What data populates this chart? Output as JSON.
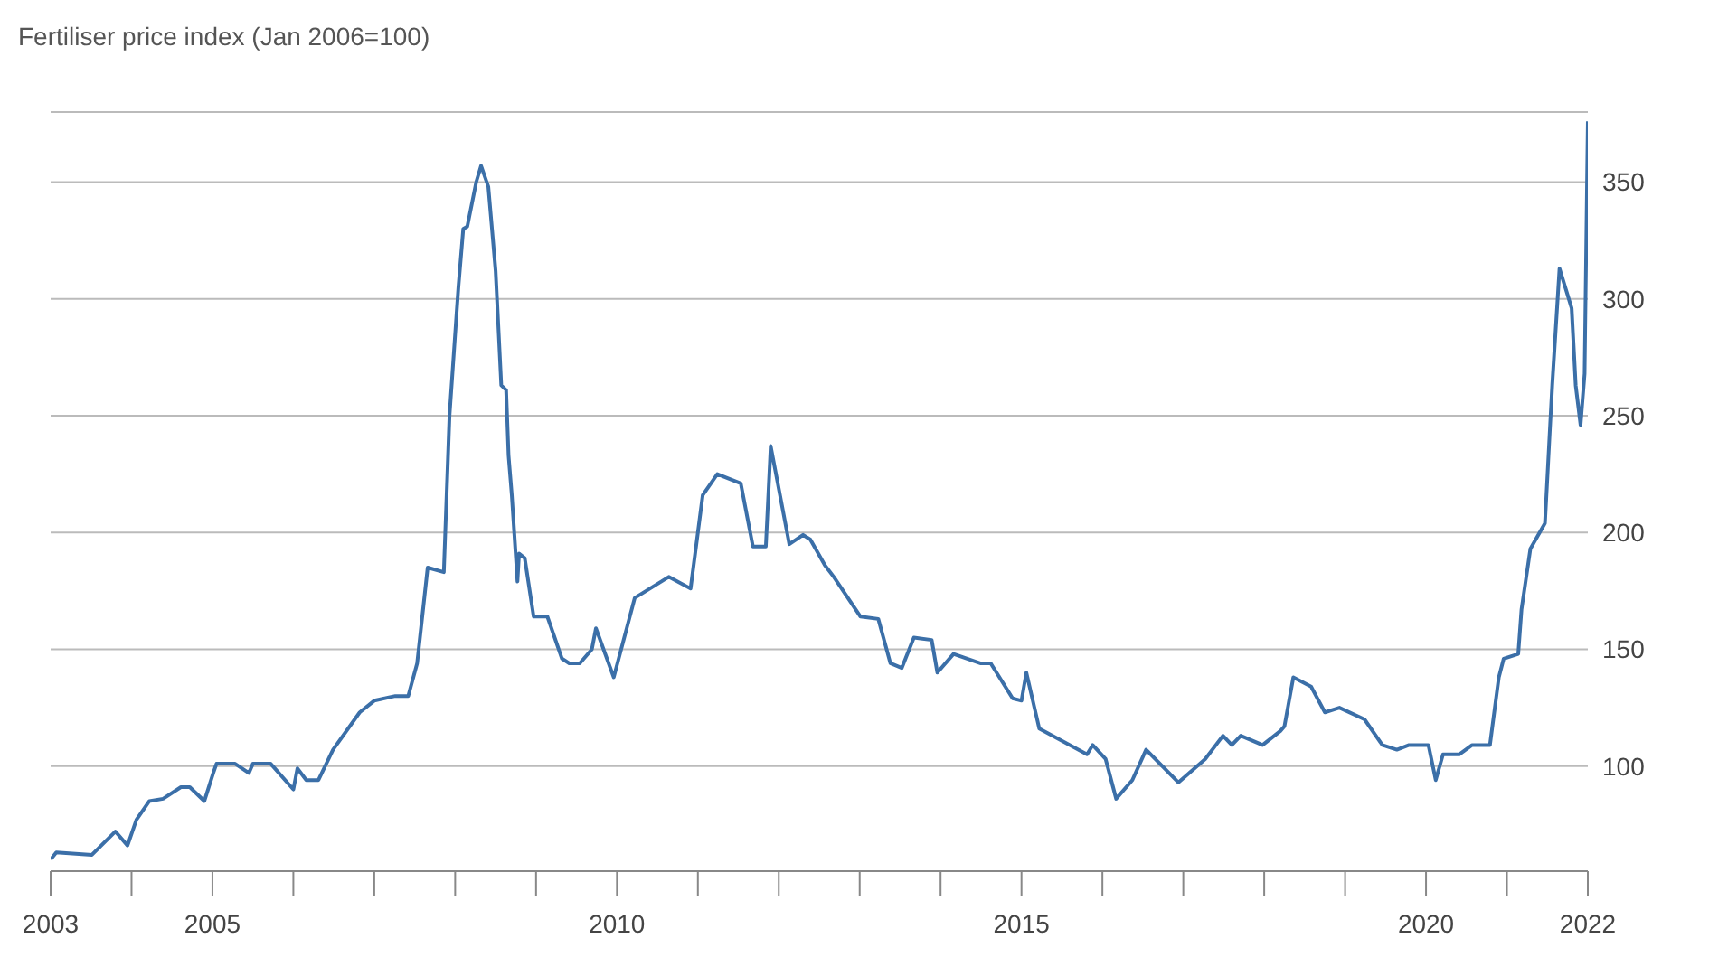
{
  "chart_data": {
    "type": "line",
    "title": "Fertiliser price index (Jan 2006=100)",
    "x": [
      2003.0,
      2003.07,
      2003.51,
      2003.8,
      2003.95,
      2004.06,
      2004.22,
      2004.39,
      2004.61,
      2004.72,
      2004.9,
      2005.01,
      2005.05,
      2005.28,
      2005.45,
      2005.5,
      2005.72,
      2006.0,
      2006.05,
      2006.16,
      2006.31,
      2006.49,
      2006.82,
      2007.0,
      2007.26,
      2007.42,
      2007.53,
      2007.66,
      2007.86,
      2007.93,
      2008.04,
      2008.1,
      2008.15,
      2008.26,
      2008.32,
      2008.41,
      2008.5,
      2008.57,
      2008.63,
      2008.66,
      2008.7,
      2008.77,
      2008.79,
      2008.86,
      2008.97,
      2009.14,
      2009.32,
      2009.41,
      2009.54,
      2009.69,
      2009.74,
      2009.96,
      2010.22,
      2010.64,
      2010.91,
      2011.06,
      2011.24,
      2011.53,
      2011.68,
      2011.84,
      2011.9,
      2012.13,
      2012.3,
      2012.39,
      2012.57,
      2012.68,
      2013.01,
      2013.23,
      2013.38,
      2013.52,
      2013.67,
      2013.89,
      2013.96,
      2014.16,
      2014.49,
      2014.62,
      2014.89,
      2015.0,
      2015.06,
      2015.22,
      2015.81,
      2015.88,
      2016.04,
      2016.17,
      2016.37,
      2016.54,
      2016.94,
      2017.27,
      2017.49,
      2017.6,
      2017.71,
      2017.98,
      2018.2,
      2018.25,
      2018.36,
      2018.58,
      2018.75,
      2018.93,
      2019.24,
      2019.46,
      2019.64,
      2019.79,
      2020.03,
      2020.12,
      2020.21,
      2020.41,
      2020.57,
      2020.79,
      2020.9,
      2020.96,
      2021.14,
      2021.18,
      2021.29,
      2021.47,
      2021.56,
      2021.65,
      2021.8,
      2021.85,
      2021.91,
      2021.96,
      2022.0
    ],
    "series": [
      {
        "color": "#3b6fa8",
        "values": [
          60,
          63,
          62,
          72,
          66,
          77,
          85,
          86,
          91,
          91,
          85,
          97,
          101,
          101,
          97,
          101,
          101,
          90,
          99,
          94,
          94,
          107,
          123,
          128,
          130,
          130,
          144,
          185,
          183,
          250,
          305,
          330,
          331,
          350,
          357,
          348,
          312,
          263,
          261,
          233,
          216,
          179,
          191,
          189,
          164,
          164,
          146,
          144,
          144,
          150,
          159,
          138,
          172,
          181,
          176,
          216,
          225,
          221,
          194,
          194,
          237,
          195,
          199,
          197,
          186,
          181,
          164,
          163,
          144,
          142,
          155,
          154,
          140,
          148,
          144,
          144,
          129,
          128,
          140,
          116,
          105,
          109,
          103,
          86,
          94,
          107,
          93,
          103,
          113,
          109,
          113,
          109,
          115,
          117,
          138,
          134,
          123,
          125,
          120,
          109,
          107,
          109,
          109,
          94,
          105,
          105,
          109,
          109,
          138,
          146,
          148,
          167,
          193,
          204,
          263,
          313,
          296,
          263,
          246,
          268,
          376
        ]
      }
    ],
    "xlim": [
      2003,
      2022
    ],
    "xticks": [
      {
        "value": 2003,
        "label": "2003"
      },
      {
        "value": 2004,
        "label": null
      },
      {
        "value": 2005,
        "label": "2005"
      },
      {
        "value": 2006,
        "label": null
      },
      {
        "value": 2007,
        "label": null
      },
      {
        "value": 2008,
        "label": null
      },
      {
        "value": 2009,
        "label": null
      },
      {
        "value": 2010,
        "label": "2010"
      },
      {
        "value": 2011,
        "label": null
      },
      {
        "value": 2012,
        "label": null
      },
      {
        "value": 2013,
        "label": null
      },
      {
        "value": 2014,
        "label": null
      },
      {
        "value": 2015,
        "label": "2015"
      },
      {
        "value": 2016,
        "label": null
      },
      {
        "value": 2017,
        "label": null
      },
      {
        "value": 2018,
        "label": null
      },
      {
        "value": 2019,
        "label": null
      },
      {
        "value": 2020,
        "label": "2020"
      },
      {
        "value": 2021,
        "label": null
      },
      {
        "value": 2022,
        "label": "2022"
      }
    ],
    "ylim": [
      55,
      380
    ],
    "yticks": [
      100,
      150,
      200,
      250,
      300,
      350
    ],
    "grid": "y",
    "marker": "none",
    "line_style": "solid"
  }
}
